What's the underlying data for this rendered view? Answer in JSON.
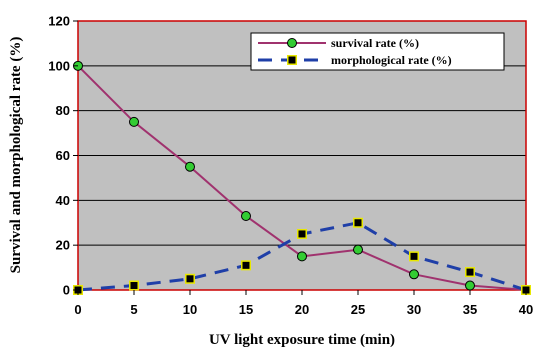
{
  "chart_data": {
    "type": "line",
    "x": [
      0,
      5,
      10,
      15,
      20,
      25,
      30,
      35,
      40
    ],
    "xlabel": "UV light exposure time (min)",
    "ylabel": "Survival and morphological rate (%)",
    "xlim": [
      0,
      40
    ],
    "ylim": [
      0,
      120
    ],
    "x_ticks": [
      "0",
      "5",
      "10",
      "15",
      "20",
      "25",
      "30",
      "35",
      "40"
    ],
    "y_ticks": [
      "0",
      "20",
      "40",
      "60",
      "80",
      "100",
      "120"
    ],
    "grid": true,
    "legend_position": "top-right",
    "plot_background": "#c0c0c0",
    "plot_border_color": "#cc0000",
    "series": [
      {
        "name": "survival rate (%)",
        "values": [
          100,
          75,
          55,
          33,
          15,
          18,
          7,
          2,
          0
        ],
        "line_color": "#a0326e",
        "line_style": "solid",
        "marker": "circle",
        "marker_color": "#33cc33"
      },
      {
        "name": "morphological rate (%)",
        "values": [
          0,
          2,
          5,
          11,
          25,
          30,
          15,
          8,
          0
        ],
        "line_color": "#1f3fa8",
        "line_style": "dashed",
        "marker": "square",
        "marker_color": "#e8e800"
      }
    ]
  }
}
